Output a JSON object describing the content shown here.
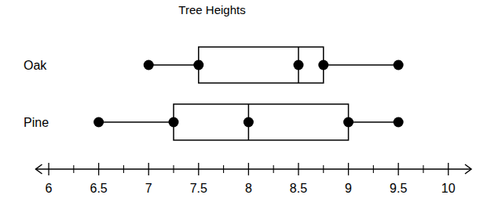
{
  "chart_data": {
    "type": "box",
    "title": "Tree Heights",
    "orientation": "horizontal",
    "categories": [
      "Oak",
      "Pine"
    ],
    "min": [
      7,
      6.5
    ],
    "q1": [
      7.5,
      7.25
    ],
    "median": [
      8.5,
      8
    ],
    "q3": [
      8.75,
      9
    ],
    "max": [
      9.5,
      9.5
    ],
    "xlim": [
      5.87,
      10.23
    ],
    "xticks": [
      6,
      6.5,
      7,
      7.5,
      8,
      8.5,
      9,
      9.5,
      10
    ],
    "xminor_ticks": [
      6.25,
      6.75,
      7.25,
      7.75,
      8.25,
      8.75,
      9.25,
      9.75
    ],
    "marker": "circle",
    "grid": false
  }
}
